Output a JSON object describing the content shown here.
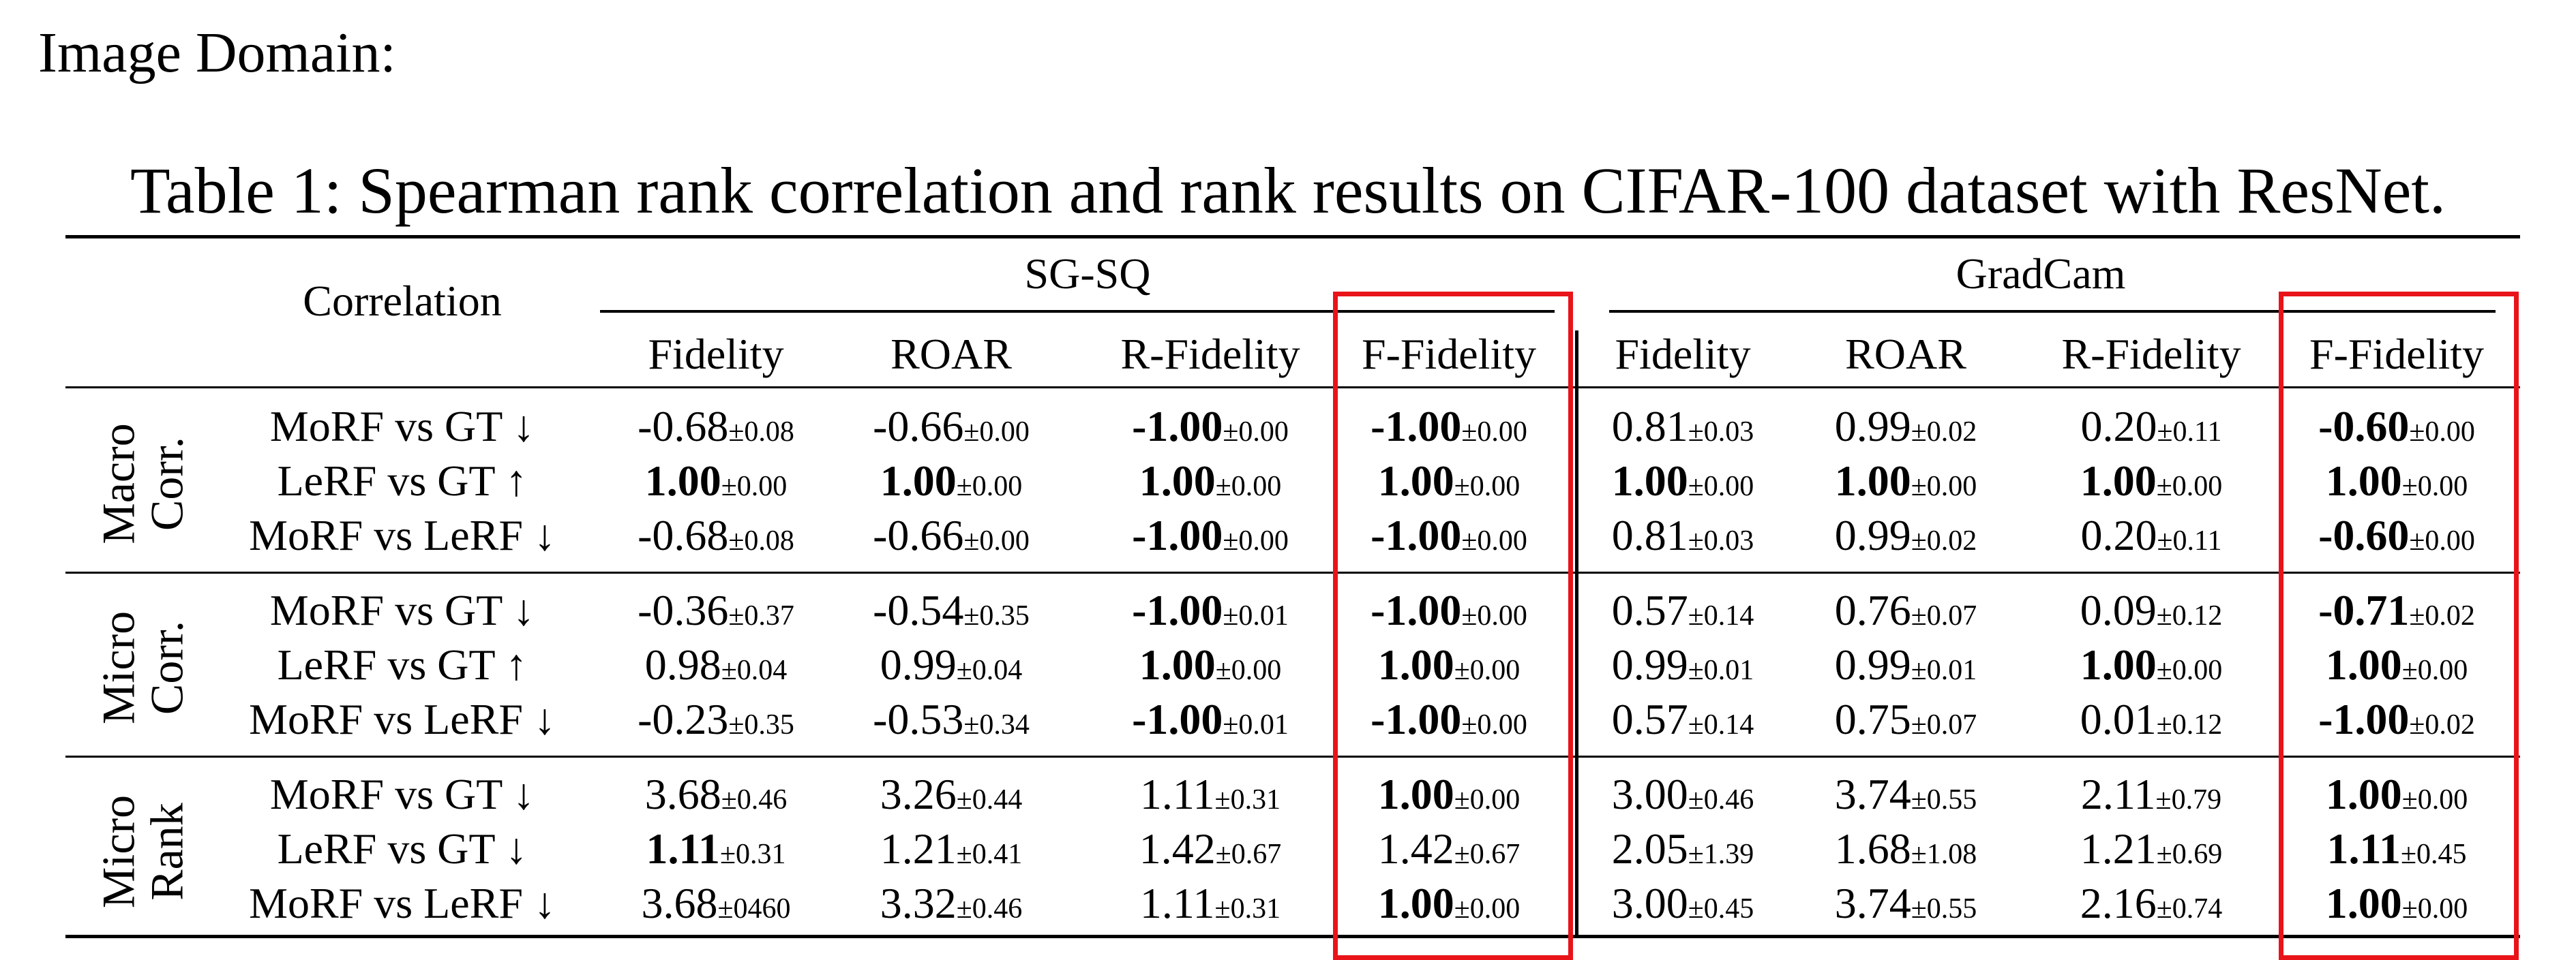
{
  "domain_label": "Image Domain:",
  "caption": "Table 1: Spearman rank correlation and rank results on CIFAR-100 dataset with ResNet.",
  "header": {
    "corner": "Correlation",
    "groups": [
      "SG-SQ",
      "GradCam"
    ],
    "columns": [
      "Fidelity",
      "ROAR",
      "R-Fidelity",
      "F-Fidelity",
      "Fidelity",
      "ROAR",
      "R-Fidelity",
      "F-Fidelity"
    ]
  },
  "sections": [
    {
      "label_lines": [
        "Macro",
        "Corr."
      ],
      "rows": [
        {
          "label": "MoRF vs GT ↓",
          "cells": [
            {
              "m": "-0.68",
              "s": "±0.08",
              "b": false
            },
            {
              "m": "-0.66",
              "s": "±0.00",
              "b": false
            },
            {
              "m": "-1.00",
              "s": "±0.00",
              "b": true
            },
            {
              "m": "-1.00",
              "s": "±0.00",
              "b": true
            },
            {
              "m": "0.81",
              "s": "±0.03",
              "b": false
            },
            {
              "m": "0.99",
              "s": "±0.02",
              "b": false
            },
            {
              "m": "0.20",
              "s": "±0.11",
              "b": false
            },
            {
              "m": "-0.60",
              "s": "±0.00",
              "b": true
            }
          ]
        },
        {
          "label": "LeRF vs GT ↑",
          "cells": [
            {
              "m": "1.00",
              "s": "±0.00",
              "b": true
            },
            {
              "m": "1.00",
              "s": "±0.00",
              "b": true
            },
            {
              "m": "1.00",
              "s": "±0.00",
              "b": true
            },
            {
              "m": "1.00",
              "s": "±0.00",
              "b": true
            },
            {
              "m": "1.00",
              "s": "±0.00",
              "b": true
            },
            {
              "m": "1.00",
              "s": "±0.00",
              "b": true
            },
            {
              "m": "1.00",
              "s": "±0.00",
              "b": true
            },
            {
              "m": "1.00",
              "s": "±0.00",
              "b": true
            }
          ]
        },
        {
          "label": "MoRF vs LeRF ↓",
          "cells": [
            {
              "m": "-0.68",
              "s": "±0.08",
              "b": false
            },
            {
              "m": "-0.66",
              "s": "±0.00",
              "b": false
            },
            {
              "m": "-1.00",
              "s": "±0.00",
              "b": true
            },
            {
              "m": "-1.00",
              "s": "±0.00",
              "b": true
            },
            {
              "m": "0.81",
              "s": "±0.03",
              "b": false
            },
            {
              "m": "0.99",
              "s": "±0.02",
              "b": false
            },
            {
              "m": "0.20",
              "s": "±0.11",
              "b": false
            },
            {
              "m": "-0.60",
              "s": "±0.00",
              "b": true
            }
          ]
        }
      ]
    },
    {
      "label_lines": [
        "Micro",
        "Corr."
      ],
      "rows": [
        {
          "label": "MoRF vs GT ↓",
          "cells": [
            {
              "m": "-0.36",
              "s": "±0.37",
              "b": false
            },
            {
              "m": "-0.54",
              "s": "±0.35",
              "b": false
            },
            {
              "m": "-1.00",
              "s": "±0.01",
              "b": true
            },
            {
              "m": "-1.00",
              "s": "±0.00",
              "b": true
            },
            {
              "m": "0.57",
              "s": "±0.14",
              "b": false
            },
            {
              "m": "0.76",
              "s": "±0.07",
              "b": false
            },
            {
              "m": "0.09",
              "s": "±0.12",
              "b": false
            },
            {
              "m": "-0.71",
              "s": "±0.02",
              "b": true
            }
          ]
        },
        {
          "label": "LeRF vs GT ↑",
          "cells": [
            {
              "m": "0.98",
              "s": "±0.04",
              "b": false
            },
            {
              "m": "0.99",
              "s": "±0.04",
              "b": false
            },
            {
              "m": "1.00",
              "s": "±0.00",
              "b": true
            },
            {
              "m": "1.00",
              "s": "±0.00",
              "b": true
            },
            {
              "m": "0.99",
              "s": "±0.01",
              "b": false
            },
            {
              "m": "0.99",
              "s": "±0.01",
              "b": false
            },
            {
              "m": "1.00",
              "s": "±0.00",
              "b": true
            },
            {
              "m": "1.00",
              "s": "±0.00",
              "b": true
            }
          ]
        },
        {
          "label": "MoRF vs LeRF ↓",
          "cells": [
            {
              "m": "-0.23",
              "s": "±0.35",
              "b": false
            },
            {
              "m": "-0.53",
              "s": "±0.34",
              "b": false
            },
            {
              "m": "-1.00",
              "s": "±0.01",
              "b": true
            },
            {
              "m": "-1.00",
              "s": "±0.00",
              "b": true
            },
            {
              "m": "0.57",
              "s": "±0.14",
              "b": false
            },
            {
              "m": "0.75",
              "s": "±0.07",
              "b": false
            },
            {
              "m": "0.01",
              "s": "±0.12",
              "b": false
            },
            {
              "m": "-1.00",
              "s": "±0.02",
              "b": true
            }
          ]
        }
      ]
    },
    {
      "label_lines": [
        "Micro",
        "Rank"
      ],
      "rows": [
        {
          "label": "MoRF vs GT ↓",
          "cells": [
            {
              "m": "3.68",
              "s": "±0.46",
              "b": false
            },
            {
              "m": "3.26",
              "s": "±0.44",
              "b": false
            },
            {
              "m": "1.11",
              "s": "±0.31",
              "b": false
            },
            {
              "m": "1.00",
              "s": "±0.00",
              "b": true
            },
            {
              "m": "3.00",
              "s": "±0.46",
              "b": false
            },
            {
              "m": "3.74",
              "s": "±0.55",
              "b": false
            },
            {
              "m": "2.11",
              "s": "±0.79",
              "b": false
            },
            {
              "m": "1.00",
              "s": "±0.00",
              "b": true
            }
          ]
        },
        {
          "label": "LeRF vs GT ↓",
          "cells": [
            {
              "m": "1.11",
              "s": "±0.31",
              "b": true
            },
            {
              "m": "1.21",
              "s": "±0.41",
              "b": false
            },
            {
              "m": "1.42",
              "s": "±0.67",
              "b": false
            },
            {
              "m": "1.42",
              "s": "±0.67",
              "b": false
            },
            {
              "m": "2.05",
              "s": "±1.39",
              "b": false
            },
            {
              "m": "1.68",
              "s": "±1.08",
              "b": false
            },
            {
              "m": "1.21",
              "s": "±0.69",
              "b": false
            },
            {
              "m": "1.11",
              "s": "±0.45",
              "b": true
            }
          ]
        },
        {
          "label": "MoRF vs LeRF ↓",
          "cells": [
            {
              "m": "3.68",
              "s": "±0460",
              "b": false
            },
            {
              "m": "3.32",
              "s": "±0.46",
              "b": false
            },
            {
              "m": "1.11",
              "s": "±0.31",
              "b": false
            },
            {
              "m": "1.00",
              "s": "±0.00",
              "b": true
            },
            {
              "m": "3.00",
              "s": "±0.45",
              "b": false
            },
            {
              "m": "3.74",
              "s": "±0.55",
              "b": false
            },
            {
              "m": "2.16",
              "s": "±0.74",
              "b": false
            },
            {
              "m": "1.00",
              "s": "±0.00",
              "b": true
            }
          ]
        }
      ]
    }
  ],
  "highlight_color": "#e8141a"
}
